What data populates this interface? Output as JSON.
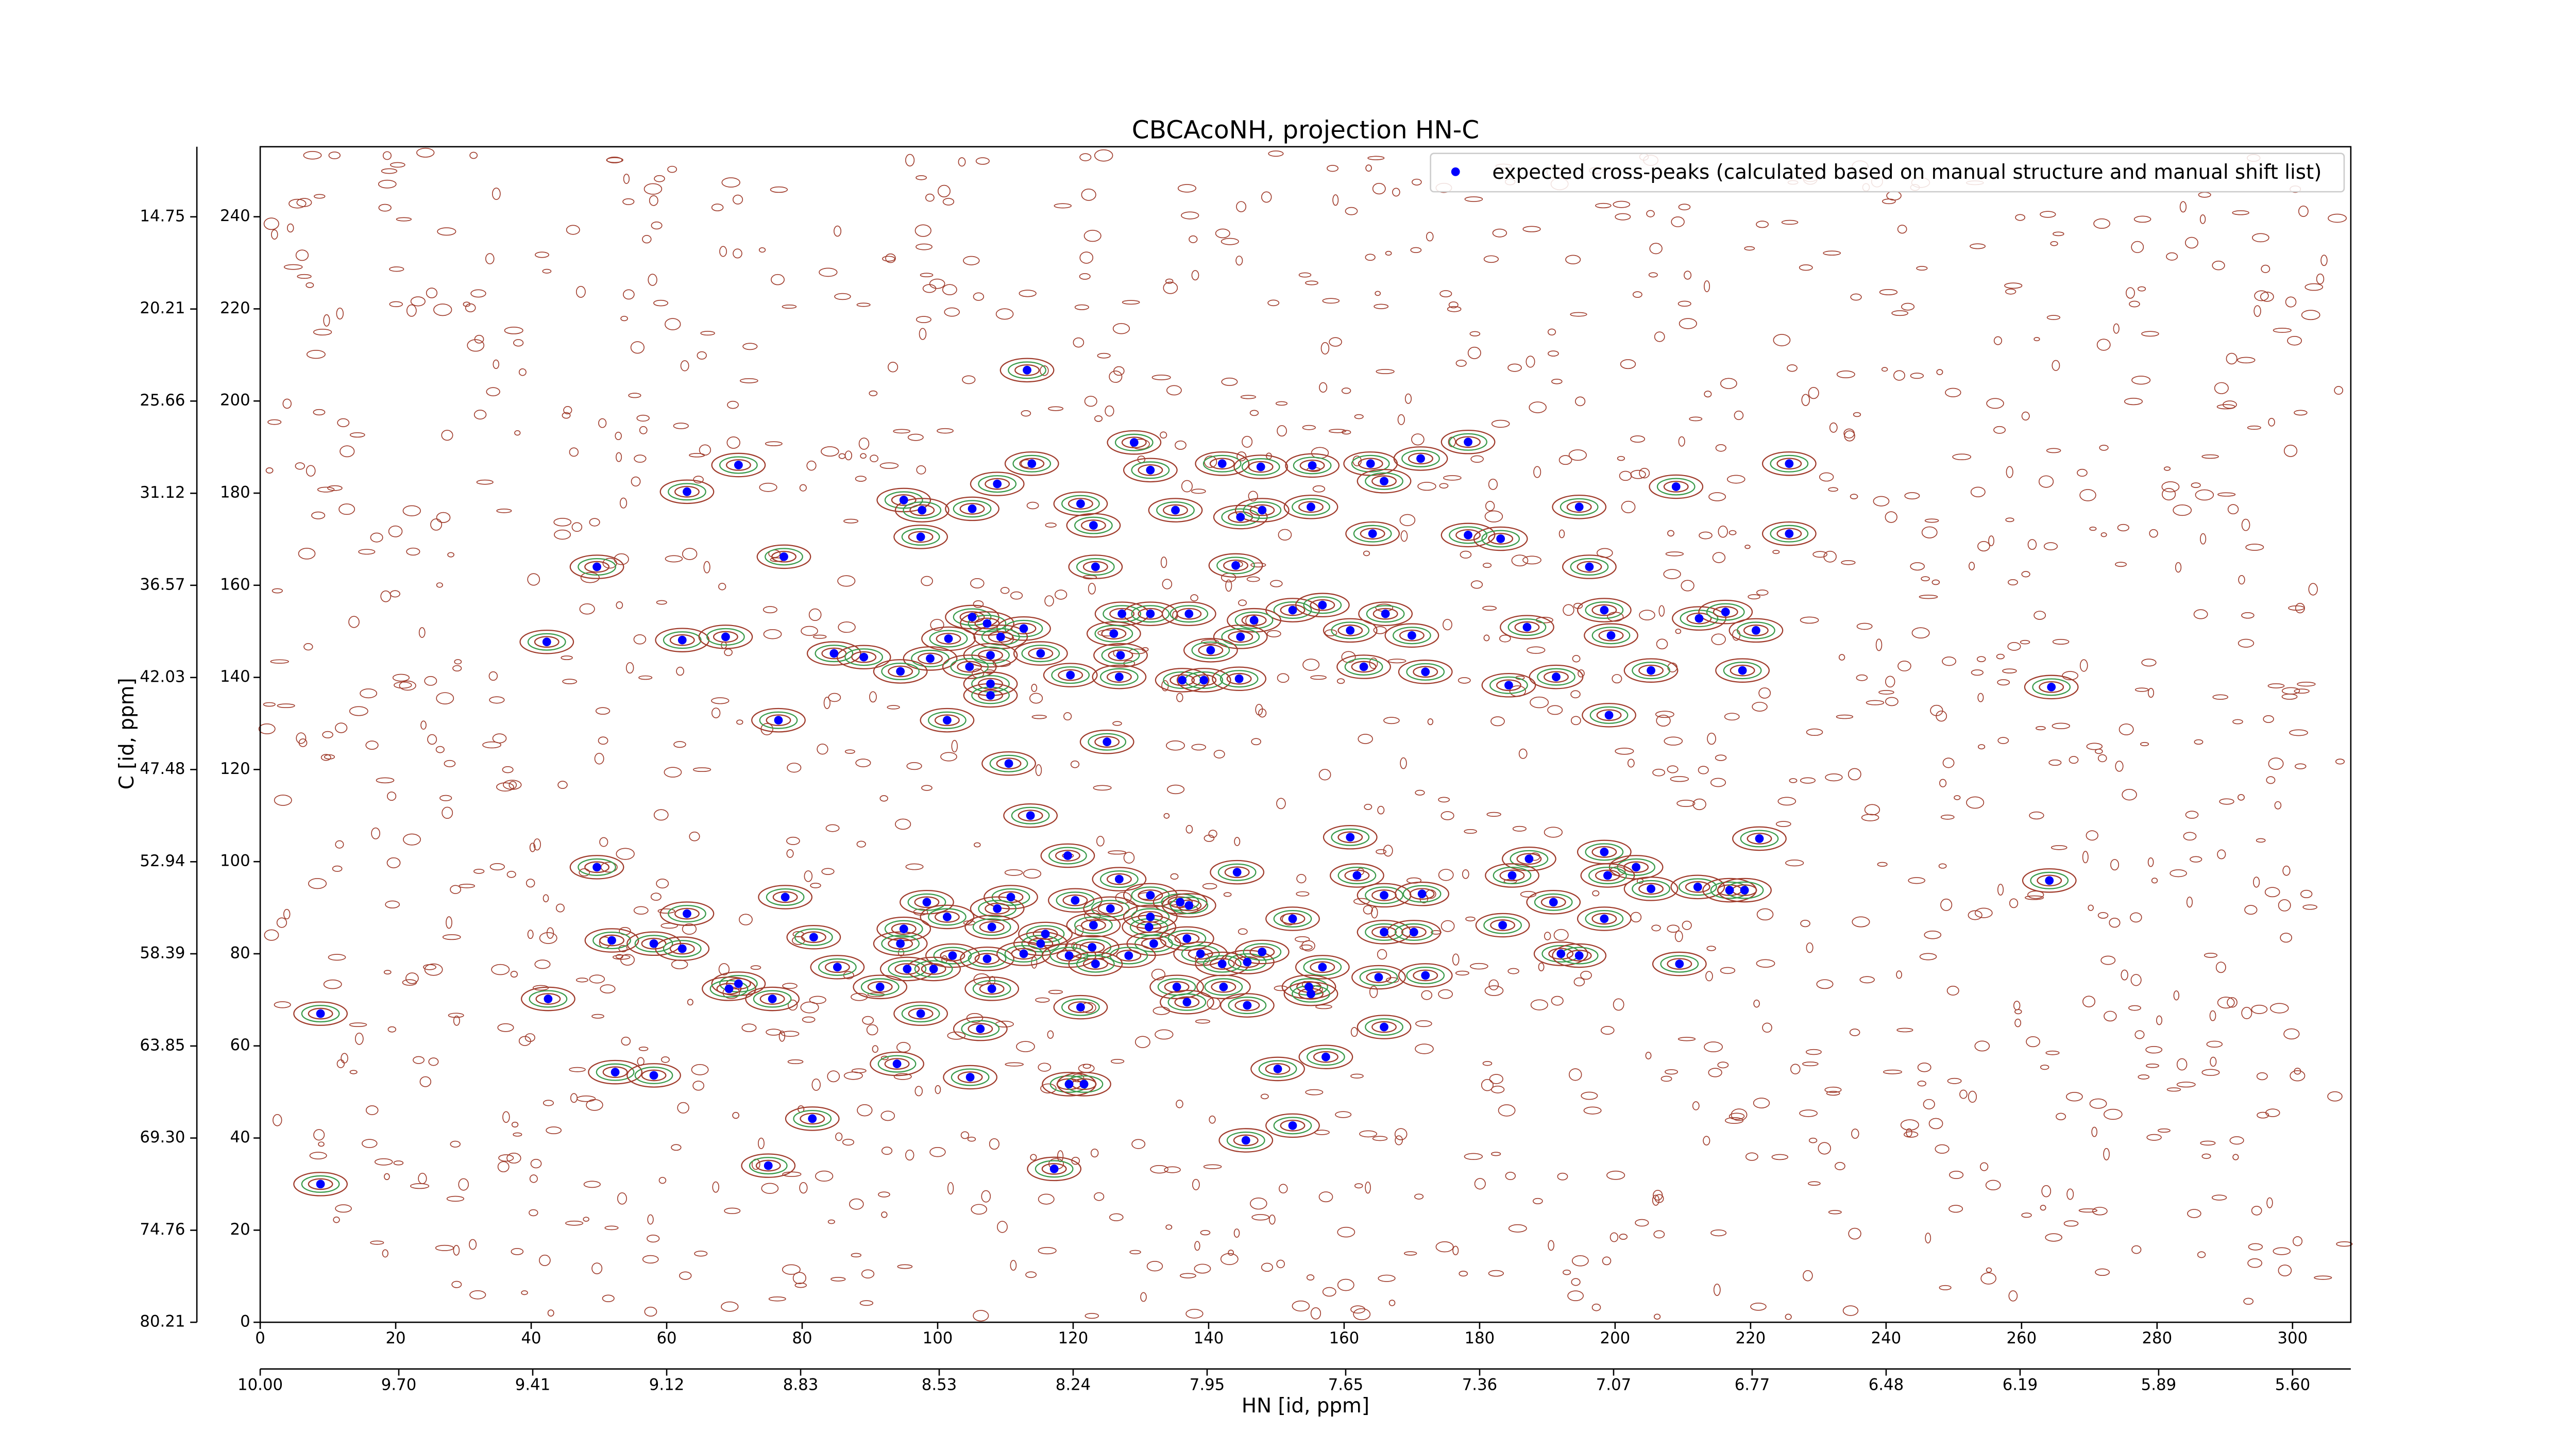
{
  "chart_data": {
    "type": "scatter",
    "title": "CBCAcoNH, projection HN-C",
    "x_label": "HN [id, ppm]",
    "y_label": "C [id, ppm]",
    "xlim": [
      0,
      308.6
    ],
    "ylim": [
      0,
      255.2
    ],
    "xticks": [
      0,
      20,
      40,
      60,
      80,
      100,
      120,
      140,
      160,
      180,
      200,
      220,
      240,
      260,
      280,
      300
    ],
    "yticks": [
      0,
      20,
      40,
      60,
      80,
      100,
      120,
      140,
      160,
      180,
      200,
      220,
      240
    ],
    "x2lim": [
      10.0,
      5.474
    ],
    "x2ticks": [
      {
        "value": 10,
        "label": "10.00"
      },
      {
        "value": 9.7,
        "label": "9.70"
      },
      9.41,
      9.12,
      8.83,
      8.53,
      8.24,
      7.95,
      7.65,
      7.36,
      7.07,
      6.77,
      6.48,
      6.19,
      5.89,
      {
        "value": 5.6,
        "label": "5.60"
      }
    ],
    "y2lim": [
      80.21,
      10.6
    ],
    "y2ticks": [
      80.21,
      74.76,
      {
        "value": 69.3,
        "label": "69.30"
      },
      63.85,
      58.39,
      52.94,
      47.48,
      42.03,
      36.57,
      31.12,
      25.66,
      20.21,
      14.75
    ],
    "legend": "upper right",
    "series": [
      {
        "name": "expected cross-peaks (calculated based on manual structure and manual shift list)",
        "color": "#0000ff",
        "x": [
          113.2,
          178.3,
          70.6,
          113.9,
          129,
          131.4,
          142,
          147.7,
          155.3,
          163.9,
          171.3,
          225.7,
          63,
          108.8,
          165.9,
          209,
          95,
          97.7,
          105.1,
          121.1,
          135.1,
          144.7,
          147.9,
          155.1,
          194.7,
          123,
          97.5,
          164.2,
          178.3,
          183.1,
          225.7,
          77.3,
          49.7,
          123.3,
          144,
          196.2,
          152.4,
          156.8,
          105.1,
          107.3,
          112.7,
          127.2,
          131.4,
          137.1,
          146.7,
          166.1,
          187,
          198.4,
          212.4,
          216.3,
          220.8,
          42.3,
          62.3,
          68.7,
          101.6,
          109.3,
          126,
          144.7,
          160.9,
          170,
          199.4,
          84.7,
          89.1,
          98.9,
          107.8,
          115.2,
          127,
          140.3,
          94.5,
          104.7,
          107.8,
          119.6,
          126.8,
          136.1,
          139.3,
          144.5,
          162.9,
          172,
          184.3,
          191.3,
          205.3,
          218.8,
          264.4,
          107.8,
          76.5,
          101.4,
          199.1,
          125,
          110.5,
          113.7,
          160.9,
          221.3,
          119.2,
          49.7,
          187.3,
          198.4,
          144.2,
          203.1,
          161.9,
          184.8,
          198.9,
          264.1,
          126.8,
          205.3,
          212.2,
          216.9,
          219.1,
          77.5,
          98.4,
          110.8,
          120.3,
          125.5,
          131.4,
          135.8,
          137.1,
          165.9,
          171.5,
          63,
          101.4,
          108.8,
          131.4,
          152.4,
          190.9,
          108,
          95,
          115.9,
          123,
          131.2,
          165.9,
          170.3,
          183.4,
          198.4,
          51.9,
          58.1,
          62.3,
          81.7,
          94.5,
          115.2,
          122.8,
          131.9,
          136.8,
          102.2,
          107.3,
          112.7,
          119.4,
          128.2,
          138.8,
          142,
          145.7,
          147.9,
          192,
          194.7,
          85.2,
          95.5,
          99.4,
          123.3,
          156.8,
          165.1,
          172,
          209.5,
          70.6,
          69.2,
          91.5,
          108,
          135.3,
          142.2,
          154.8,
          155.1,
          75.6,
          136.8,
          42.5,
          145.7,
          8.9,
          97.5,
          121.1,
          106.3,
          165.9,
          157.3,
          94,
          52.4,
          58.1,
          104.8,
          150.2,
          119.4,
          121.6,
          81.5,
          152.4,
          145.5,
          75,
          117.2,
          8.9
        ],
        "values": [
          206.7,
          191.1,
          186.1,
          186.4,
          191,
          185,
          186.4,
          185.7,
          186,
          186.4,
          187.5,
          186.4,
          180.3,
          182,
          182.6,
          181.4,
          178.5,
          176.3,
          176.6,
          177.7,
          176.3,
          174.8,
          176.3,
          177,
          177,
          173,
          170.5,
          171.2,
          170.9,
          170.1,
          171.2,
          166.2,
          164,
          164,
          164.3,
          164,
          154.6,
          155.7,
          153.1,
          151.7,
          150.6,
          153.8,
          153.8,
          153.8,
          152.4,
          153.8,
          150.9,
          154.6,
          152.8,
          154.2,
          150.2,
          147.7,
          148.1,
          148.8,
          148.4,
          148.8,
          149.5,
          148.8,
          150.2,
          149.1,
          149.1,
          145.2,
          144.4,
          144.1,
          144.8,
          145.2,
          144.8,
          145.9,
          141.3,
          142.3,
          138.6,
          140.5,
          140.1,
          139.4,
          139.4,
          139.7,
          142.3,
          141.2,
          138.3,
          140.1,
          141.5,
          141.5,
          137.9,
          136.1,
          130.7,
          130.7,
          131.8,
          126,
          121.3,
          110,
          105.3,
          105,
          101.3,
          98.8,
          100.6,
          102.1,
          97.7,
          98.8,
          97,
          97,
          97,
          95.9,
          96.2,
          94.1,
          94.5,
          93.8,
          93.8,
          92.3,
          91.2,
          92.3,
          91.6,
          89.8,
          92.7,
          91.2,
          90.5,
          92.7,
          93,
          88.7,
          88,
          89.8,
          88,
          87.6,
          91.2,
          85.8,
          85.4,
          84.3,
          86.2,
          85.8,
          84.7,
          84.7,
          86.2,
          87.6,
          82.9,
          82.2,
          81.1,
          83.6,
          82.2,
          82.2,
          81.4,
          82.2,
          83.3,
          79.6,
          78.9,
          80,
          79.6,
          79.6,
          80,
          77.8,
          78.2,
          80.4,
          80,
          79.6,
          77.1,
          76.7,
          76.7,
          77.8,
          77.1,
          74.9,
          75.3,
          77.8,
          73.5,
          72.4,
          72.8,
          72.4,
          72.8,
          72.8,
          72.8,
          71.3,
          70.2,
          69.5,
          70.2,
          68.8,
          67,
          67,
          68.4,
          63.7,
          64.1,
          57.6,
          56.1,
          54.3,
          53.6,
          53.2,
          55,
          51.7,
          51.7,
          44.2,
          42.7,
          39.5,
          34,
          33.3,
          30
        ]
      }
    ]
  }
}
